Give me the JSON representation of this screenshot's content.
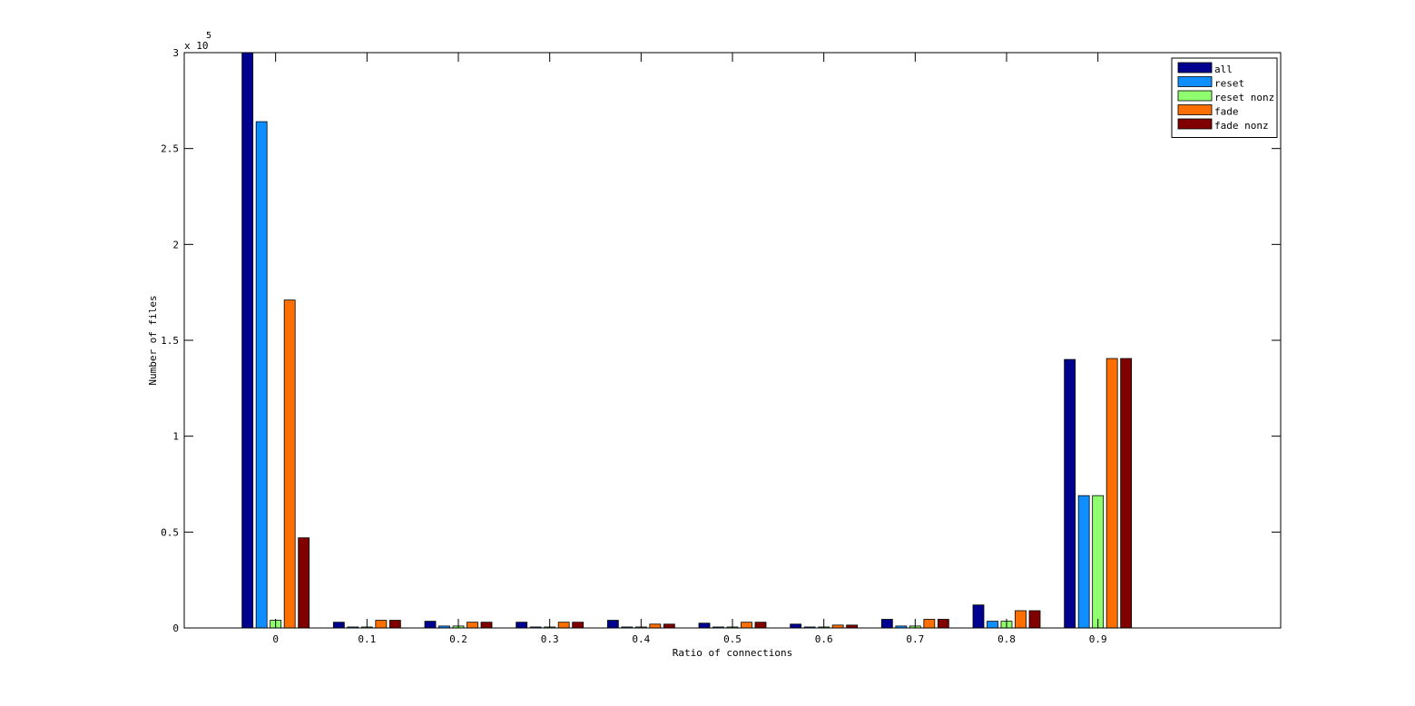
{
  "chart_data": {
    "type": "bar",
    "xlabel": "Ratio of connections",
    "ylabel": "Number of files",
    "y_exponent_label": "x 10",
    "y_exponent_power": "5",
    "categories": [
      "0",
      "0.1",
      "0.2",
      "0.3",
      "0.4",
      "0.5",
      "0.6",
      "0.7",
      "0.8",
      "0.9"
    ],
    "x": [
      0,
      0.1,
      0.2,
      0.3,
      0.4,
      0.5,
      0.6,
      0.7,
      0.8,
      0.9
    ],
    "xlim": [
      -0.1,
      1.1
    ],
    "ylim": [
      0,
      3
    ],
    "y_ticks": [
      "0",
      "0.5",
      "1",
      "1.5",
      "2",
      "2.5",
      "3"
    ],
    "y_tick_values": [
      0,
      0.5,
      1,
      1.5,
      2,
      2.5,
      3
    ],
    "grid": false,
    "legend_position": "top-right",
    "series": [
      {
        "name": "all",
        "color": "#00008f",
        "values": [
          3.0,
          0.03,
          0.035,
          0.03,
          0.04,
          0.025,
          0.02,
          0.045,
          0.12,
          1.4
        ]
      },
      {
        "name": "reset",
        "color": "#0f8fff",
        "values": [
          2.64,
          0.005,
          0.01,
          0.005,
          0.005,
          0.005,
          0.005,
          0.01,
          0.035,
          0.69
        ]
      },
      {
        "name": "reset nonz",
        "color": "#8fff6f",
        "values": [
          0.04,
          0.005,
          0.01,
          0.005,
          0.005,
          0.005,
          0.005,
          0.01,
          0.035,
          0.69
        ]
      },
      {
        "name": "fade",
        "color": "#ff6f00",
        "values": [
          1.71,
          0.04,
          0.03,
          0.03,
          0.02,
          0.03,
          0.015,
          0.045,
          0.09,
          1.405
        ]
      },
      {
        "name": "fade nonz",
        "color": "#800000",
        "values": [
          0.47,
          0.04,
          0.03,
          0.03,
          0.02,
          0.03,
          0.015,
          0.045,
          0.09,
          1.405
        ]
      }
    ]
  }
}
